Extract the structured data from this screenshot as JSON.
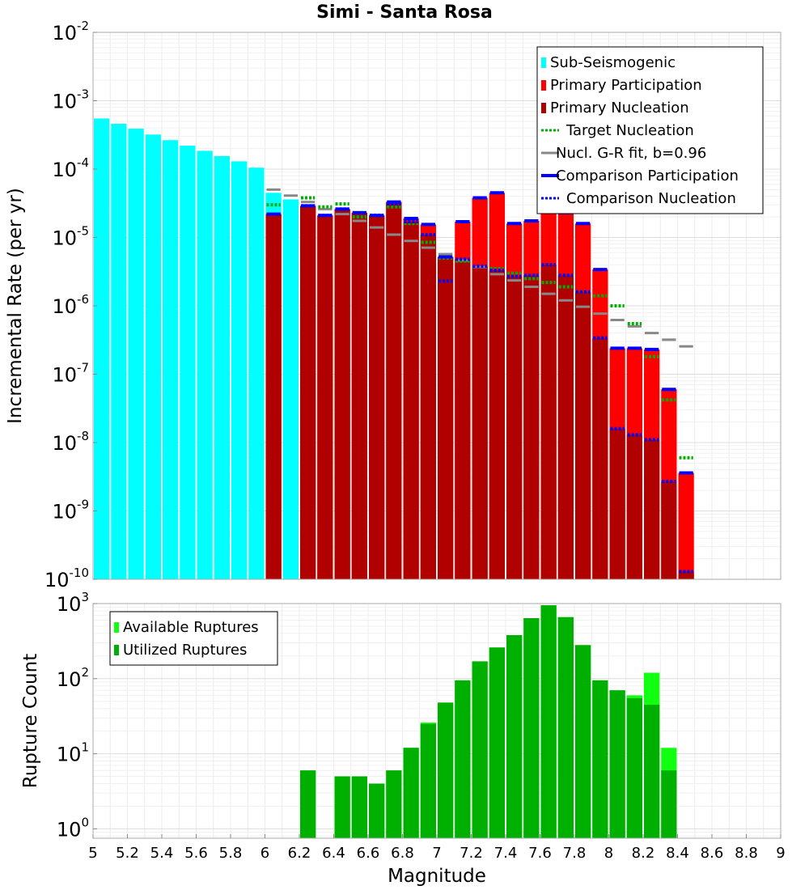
{
  "figure": {
    "title": "Simi - Santa Rosa",
    "xlabel": "Magnitude",
    "xlim": [
      5,
      9
    ],
    "x_ticks": [
      "5",
      "5.2",
      "5.4",
      "5.6",
      "5.8",
      "6",
      "6.2",
      "6.4",
      "6.6",
      "6.8",
      "7",
      "7.2",
      "7.4",
      "7.6",
      "7.8",
      "8",
      "8.2",
      "8.4",
      "8.6",
      "8.8",
      "9"
    ]
  },
  "chart_data": [
    {
      "type": "bar",
      "title": "Simi - Santa Rosa",
      "xlabel": "",
      "ylabel": "Incremental Rate (per yr)",
      "yscale": "log",
      "ylim": [
        1e-10,
        0.01
      ],
      "y_ticks": [
        {
          "base": "10",
          "exp": "-2"
        },
        {
          "base": "10",
          "exp": "-3"
        },
        {
          "base": "10",
          "exp": "-4"
        },
        {
          "base": "10",
          "exp": "-5"
        },
        {
          "base": "10",
          "exp": "-6"
        },
        {
          "base": "10",
          "exp": "-7"
        },
        {
          "base": "10",
          "exp": "-8"
        },
        {
          "base": "10",
          "exp": "-9"
        },
        {
          "base": "10",
          "exp": "-10"
        }
      ],
      "legend_position": "top-right",
      "colors": {
        "sub_seismogenic": "#00ffff",
        "primary_participation": "#ff0000",
        "primary_nucleation": "#b00000",
        "target_nucleation": "#00b000",
        "gr_fit": "#888888",
        "comparison": "#0000ff"
      },
      "legend": [
        {
          "label": "Sub-Seismogenic",
          "key": "sub_seismogenic",
          "style": "swatch"
        },
        {
          "label": "Primary Participation",
          "key": "primary_participation",
          "style": "swatch"
        },
        {
          "label": "Primary Nucleation",
          "key": "primary_nucleation",
          "style": "swatch"
        },
        {
          "label": "Target Nucleation",
          "key": "target_nucleation",
          "style": "dotted"
        },
        {
          "label": "Nucl. G-R fit, b=0.96",
          "key": "gr_fit",
          "style": "solid"
        },
        {
          "label": "Comparison Participation",
          "key": "comparison",
          "style": "solid-thick"
        },
        {
          "label": "Comparison Nucleation",
          "key": "comparison",
          "style": "dotted"
        }
      ],
      "sub_seismogenic": {
        "x": [
          5.05,
          5.15,
          5.25,
          5.35,
          5.45,
          5.55,
          5.65,
          5.75,
          5.85,
          5.95,
          6.05,
          6.15
        ],
        "values": [
          0.00055,
          0.00046,
          0.00039,
          0.00032,
          0.000265,
          0.00022,
          0.000185,
          0.000155,
          0.00013,
          0.000105,
          4.5e-05,
          3.6e-05
        ]
      },
      "primary_participation": {
        "x": [
          6.05,
          6.25,
          6.35,
          6.45,
          6.55,
          6.65,
          6.75,
          6.85,
          6.95,
          7.05,
          7.15,
          7.25,
          7.35,
          7.45,
          7.55,
          7.65,
          7.75,
          7.85,
          7.95,
          8.05,
          8.15,
          8.25,
          8.35,
          8.45
        ],
        "values": [
          2.2e-05,
          2.9e-05,
          2.1e-05,
          2.6e-05,
          2.3e-05,
          2.1e-05,
          3.3e-05,
          1.9e-05,
          1.55e-05,
          5.2e-06,
          1.7e-05,
          3.8e-05,
          4.5e-05,
          1.6e-05,
          1.75e-05,
          2.7e-05,
          2.3e-05,
          1.6e-05,
          3.4e-06,
          2.4e-07,
          2.4e-07,
          2.3e-07,
          6e-08,
          3.6e-09
        ]
      },
      "primary_nucleation": {
        "x": [
          6.05,
          6.25,
          6.35,
          6.45,
          6.55,
          6.65,
          6.75,
          6.85,
          6.95,
          7.05,
          7.15,
          7.25,
          7.35,
          7.45,
          7.55,
          7.65,
          7.75,
          7.85,
          7.95,
          8.05,
          8.15,
          8.25,
          8.35,
          8.45
        ],
        "values": [
          2.2e-05,
          2.9e-05,
          2.1e-05,
          2.6e-05,
          2.3e-05,
          2.1e-05,
          3.3e-05,
          1.7e-05,
          1.1e-05,
          5.2e-06,
          4.8e-06,
          3.8e-06,
          3.3e-06,
          2.7e-06,
          2.8e-06,
          4e-06,
          2.8e-06,
          1.6e-06,
          3.4e-07,
          1.6e-08,
          1.3e-08,
          1.1e-08,
          2.7e-09,
          1.3e-10
        ]
      },
      "target_nucleation": {
        "x": [
          6.05,
          6.25,
          6.35,
          6.45,
          6.55,
          6.65,
          6.75,
          6.85,
          6.95,
          7.05,
          7.15,
          7.25,
          7.35,
          7.45,
          7.55,
          7.65,
          7.75,
          7.85,
          7.95,
          8.05,
          8.15,
          8.25,
          8.35,
          8.45
        ],
        "values": [
          3e-05,
          3.8e-05,
          2.8e-05,
          3.1e-05,
          2e-05,
          2.1e-05,
          2.8e-05,
          1.6e-05,
          8.5e-06,
          5e-06,
          4.5e-06,
          3.8e-06,
          3.5e-06,
          3e-06,
          2.5e-06,
          2.2e-06,
          1.9e-06,
          1.6e-06,
          1.4e-06,
          1e-06,
          5.5e-07,
          1.8e-07,
          4.2e-08,
          6e-09
        ]
      },
      "gr_fit": {
        "x": [
          6.05,
          6.15,
          6.25,
          6.35,
          6.45,
          6.55,
          6.65,
          6.75,
          6.85,
          6.95,
          7.05,
          7.15,
          7.25,
          7.35,
          7.45,
          7.55,
          7.65,
          7.75,
          7.85,
          7.95,
          8.05,
          8.15,
          8.25,
          8.35,
          8.45
        ],
        "values": [
          5e-05,
          4.1e-05,
          3.3e-05,
          2.6e-05,
          2.2e-05,
          1.75e-05,
          1.4e-05,
          1.1e-05,
          8.9e-06,
          7.1e-06,
          5.7e-06,
          4.6e-06,
          3.7e-06,
          2.9e-06,
          2.35e-06,
          1.9e-06,
          1.5e-06,
          1.2e-06,
          9.7e-07,
          7.7e-07,
          6.2e-07,
          5e-07,
          4e-07,
          3.2e-07,
          2.55e-07
        ]
      },
      "comparison_participation": {
        "x": [
          6.05,
          6.25,
          6.35,
          6.45,
          6.55,
          6.65,
          6.75,
          6.85,
          6.95,
          7.05,
          7.15,
          7.25,
          7.35,
          7.45,
          7.55,
          7.65,
          7.75,
          7.85,
          7.95,
          8.05,
          8.15,
          8.25,
          8.35,
          8.45
        ],
        "values": [
          2.2e-05,
          2.9e-05,
          2.1e-05,
          2.6e-05,
          2.3e-05,
          2.1e-05,
          3.3e-05,
          1.9e-05,
          1.55e-05,
          5.2e-06,
          1.7e-05,
          3.8e-05,
          4.5e-05,
          1.6e-05,
          1.75e-05,
          2.7e-05,
          2.3e-05,
          1.6e-05,
          3.4e-06,
          2.4e-07,
          2.4e-07,
          2.3e-07,
          6e-08,
          3.6e-09
        ]
      },
      "comparison_nucleation": {
        "x": [
          6.25,
          6.35,
          6.45,
          6.55,
          6.65,
          6.75,
          6.85,
          6.95,
          7.05,
          7.15,
          7.25,
          7.35,
          7.45,
          7.55,
          7.65,
          7.75,
          7.85,
          7.95,
          8.05,
          8.15,
          8.25,
          8.35,
          8.45
        ],
        "values": [
          2.9e-05,
          2.1e-05,
          2.6e-05,
          2.3e-05,
          2.1e-05,
          3.1e-05,
          1.7e-05,
          1.1e-05,
          2.3e-06,
          4.8e-06,
          3.8e-06,
          3.3e-06,
          2.7e-06,
          2.8e-06,
          4e-06,
          2.8e-06,
          1.6e-06,
          3.4e-07,
          1.6e-08,
          1.3e-08,
          1.1e-08,
          2.7e-09,
          1.3e-10
        ]
      }
    },
    {
      "type": "bar",
      "title": "",
      "xlabel": "Magnitude",
      "ylabel": "Rupture Count",
      "yscale": "log",
      "ylim": [
        0.75,
        1000
      ],
      "y_ticks": [
        {
          "base": "10",
          "exp": "3"
        },
        {
          "base": "10",
          "exp": "2"
        },
        {
          "base": "10",
          "exp": "1"
        },
        {
          "base": "10",
          "exp": "0"
        }
      ],
      "legend_position": "top-left",
      "colors": {
        "available": "#11ff11",
        "utilized": "#00b000"
      },
      "legend": [
        {
          "label": "Available Ruptures",
          "key": "available",
          "style": "swatch"
        },
        {
          "label": "Utilized Ruptures",
          "key": "utilized",
          "style": "swatch"
        }
      ],
      "available": {
        "x": [
          6.25,
          6.45,
          6.55,
          6.65,
          6.75,
          6.85,
          6.95,
          7.05,
          7.15,
          7.25,
          7.35,
          7.45,
          7.55,
          7.65,
          7.75,
          7.85,
          7.95,
          8.05,
          8.15,
          8.25,
          8.35
        ],
        "values": [
          6,
          5,
          5,
          4,
          6,
          12,
          26,
          48,
          95,
          170,
          260,
          380,
          640,
          950,
          660,
          280,
          95,
          70,
          60,
          120,
          12
        ]
      },
      "utilized": {
        "x": [
          6.25,
          6.45,
          6.55,
          6.65,
          6.75,
          6.85,
          6.95,
          7.05,
          7.15,
          7.25,
          7.35,
          7.45,
          7.55,
          7.65,
          7.75,
          7.85,
          7.95,
          8.05,
          8.15,
          8.25,
          8.35
        ],
        "values": [
          6,
          5,
          5,
          4,
          6,
          12,
          25,
          48,
          95,
          170,
          260,
          380,
          640,
          950,
          660,
          280,
          95,
          70,
          55,
          45,
          6
        ]
      }
    }
  ]
}
